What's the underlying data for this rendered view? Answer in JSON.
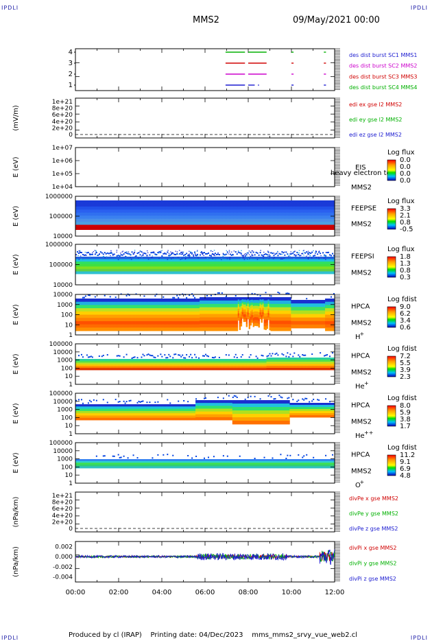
{
  "corner_label": "IPDLI",
  "header": {
    "spacecraft": "MMS2",
    "date": "09/May/2021 00:00"
  },
  "footer": {
    "produced_by": "Produced by cl (IRAP)",
    "printing_date": "Printing date: 04/Dec/2023",
    "script": "mms_mms2_srvy_vue_web2.cl"
  },
  "time_axis": {
    "ticks": [
      "00:00",
      "02:00",
      "04:00",
      "06:00",
      "08:00",
      "10:00",
      "12:00"
    ]
  },
  "panels": [
    {
      "id": "burst",
      "ytick_labels": [
        "4",
        "3",
        "2",
        "1"
      ],
      "legend": [
        {
          "text": "des dist burst SC1 MMS1",
          "color": "#1a1ad0"
        },
        {
          "text": "des dist burst SC2 MMS2",
          "color": "#cc00cc"
        },
        {
          "text": "des dist burst SC3 MMS3",
          "color": "#d00000"
        },
        {
          "text": "des dist burst SC4 MMS4",
          "color": "#00b000"
        }
      ]
    },
    {
      "id": "edi",
      "ylabel": "(mV/m)",
      "ytick_labels": [
        "1e+21",
        "8e+20",
        "6e+20",
        "4e+20",
        "2e+20",
        "0"
      ],
      "legend": [
        {
          "text": "edi ex gse l2 MMS2",
          "color": "#d00000"
        },
        {
          "text": "edi ey gse l2 MMS2",
          "color": "#00b000"
        },
        {
          "text": "edi ez gse l2 MMS2",
          "color": "#1a1ad0"
        }
      ]
    },
    {
      "id": "eis",
      "ylabel": "E (eV)",
      "ytick_labels": [
        "1e+07",
        "1e+06",
        "1e+05",
        "1e+04"
      ],
      "instrument": "EIS",
      "overlay_text": "heavy electron tof",
      "sc_label": "MMS2",
      "colorbar": {
        "title": "Log flux",
        "ticks": [
          "0.0",
          "0.0",
          "0.0",
          "0.0"
        ]
      }
    },
    {
      "id": "feepse",
      "ylabel": "E (eV)",
      "ytick_labels": [
        "1000000",
        "100000",
        "10000"
      ],
      "instrument": "FEEPSE",
      "sc_label": "MMS2",
      "colorbar": {
        "title": "Log flux",
        "ticks": [
          "3.3",
          "2.1",
          "0.8",
          "-0.5"
        ]
      }
    },
    {
      "id": "feepsi",
      "ylabel": "E (eV)",
      "ytick_labels": [
        "1000000",
        "100000",
        "10000"
      ],
      "instrument": "FEEPSI",
      "sc_label": "MMS2",
      "colorbar": {
        "title": "Log flux",
        "ticks": [
          "1.8",
          "1.3",
          "0.8",
          "0.3"
        ]
      }
    },
    {
      "id": "hpca_h",
      "ylabel": "E (eV)",
      "ytick_labels": [
        "10000",
        "1000",
        "100",
        "10",
        "1"
      ],
      "instrument": "HPCA",
      "sc_label": "MMS2",
      "species": "H",
      "species_sup": "+",
      "colorbar": {
        "title": "Log fdist",
        "ticks": [
          "9.0",
          "6.2",
          "3.4",
          "0.6"
        ]
      }
    },
    {
      "id": "hpca_he1",
      "ylabel": "E (eV)",
      "ytick_labels": [
        "100000",
        "10000",
        "1000",
        "100",
        "10",
        "1"
      ],
      "instrument": "HPCA",
      "sc_label": "MMS2",
      "species": "He",
      "species_sup": "+",
      "colorbar": {
        "title": "Log fdist",
        "ticks": [
          "7.2",
          "5.5",
          "3.9",
          "2.3"
        ]
      }
    },
    {
      "id": "hpca_he2",
      "ylabel": "E (eV)",
      "ytick_labels": [
        "100000",
        "10000",
        "1000",
        "100",
        "10",
        "1"
      ],
      "instrument": "HPCA",
      "sc_label": "MMS2",
      "species": "He",
      "species_sup": "++",
      "colorbar": {
        "title": "Log fdist",
        "ticks": [
          "8.0",
          "5.9",
          "3.8",
          "1.7"
        ]
      }
    },
    {
      "id": "hpca_o",
      "ylabel": "E (eV)",
      "ytick_labels": [
        "100000",
        "10000",
        "1000",
        "100",
        "10",
        "1"
      ],
      "instrument": "HPCA",
      "sc_label": "MMS2",
      "species": "O",
      "species_sup": "+",
      "colorbar": {
        "title": "Log fdist",
        "ticks": [
          "11.2",
          "9.1",
          "6.9",
          "4.8"
        ]
      }
    },
    {
      "id": "divpe",
      "ylabel": "(nPa/km)",
      "ytick_labels": [
        "1e+21",
        "8e+20",
        "6e+20",
        "4e+20",
        "2e+20",
        "0"
      ],
      "legend": [
        {
          "text": "divPe x gse MMS2",
          "color": "#d00000"
        },
        {
          "text": "divPe y gse MMS2",
          "color": "#00b000"
        },
        {
          "text": "divPe z gse MMS2",
          "color": "#1a1ad0"
        }
      ]
    },
    {
      "id": "divpi",
      "ylabel": "(nPa/km)",
      "ytick_labels": [
        "0.002",
        "0.000",
        "-0.002",
        "-0.004"
      ],
      "legend": [
        {
          "text": "divPi x gse MMS2",
          "color": "#d00000"
        },
        {
          "text": "divPi y gse MMS2",
          "color": "#00b000"
        },
        {
          "text": "divPi z gse MMS2",
          "color": "#1a1ad0"
        }
      ]
    }
  ],
  "chart_data": {
    "type": "heatmap",
    "x_range_hours": [
      0,
      12
    ],
    "burst_intervals": [
      {
        "name": "des dist burst SC4 MMS4",
        "level": 4,
        "color": "#00b000",
        "intervals": [
          [
            6.95,
            7.85
          ],
          [
            8.0,
            8.85
          ],
          [
            10.0,
            10.1
          ],
          [
            11.5,
            11.6
          ]
        ]
      },
      {
        "name": "des dist burst SC3 MMS3",
        "level": 3,
        "color": "#d00000",
        "intervals": [
          [
            6.95,
            7.85
          ],
          [
            8.0,
            8.85
          ],
          [
            10.0,
            10.1
          ],
          [
            11.5,
            11.6
          ]
        ]
      },
      {
        "name": "des dist burst SC2 MMS2",
        "level": 2,
        "color": "#cc00cc",
        "intervals": [
          [
            6.95,
            7.85
          ],
          [
            8.0,
            8.85
          ],
          [
            10.0,
            10.1
          ],
          [
            11.5,
            11.6
          ]
        ]
      },
      {
        "name": "des dist burst SC1 MMS1",
        "level": 1,
        "color": "#1a1ad0",
        "intervals": [
          [
            6.95,
            7.85
          ],
          [
            8.0,
            8.3
          ],
          [
            8.45,
            8.5
          ],
          [
            10.0,
            10.1
          ],
          [
            11.5,
            11.6
          ]
        ]
      }
    ],
    "divpi_y_range": [
      -0.005,
      0.003
    ]
  }
}
